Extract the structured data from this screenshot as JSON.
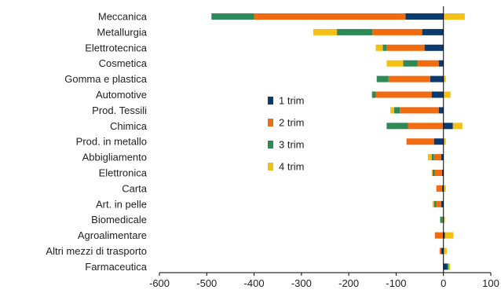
{
  "chart_data": {
    "type": "bar",
    "orientation": "horizontal",
    "stacked": true,
    "categories": [
      "Meccanica",
      "Metallurgia",
      "Elettrotecnica",
      "Cosmetica",
      "Gomma e plastica",
      "Automotive",
      "Prod. Tessili",
      "Chimica",
      "Prod. in metallo",
      "Abbigliamento",
      "Elettronica",
      "Carta",
      "Art. in pelle",
      "Biomedicale",
      "Agroalimentare",
      "Altri mezzi di trasporto",
      "Farmaceutica"
    ],
    "series": [
      {
        "name": "1 trim",
        "color": "#0b3a6e",
        "values": [
          -80,
          -45,
          -40,
          -10,
          -28,
          -25,
          -10,
          20,
          -20,
          -5,
          -3,
          -3,
          -5,
          0,
          3,
          -5,
          8
        ]
      },
      {
        "name": "2 trim",
        "color": "#f26b10",
        "values": [
          -320,
          -105,
          -80,
          -45,
          -88,
          -118,
          -82,
          -75,
          -58,
          -15,
          -15,
          -12,
          -10,
          -2,
          -18,
          -3,
          0
        ]
      },
      {
        "name": "3 trim",
        "color": "#2e8b57",
        "values": [
          -90,
          -75,
          -8,
          -30,
          -25,
          -8,
          -12,
          -45,
          0,
          -5,
          -5,
          0,
          -5,
          -5,
          0,
          0,
          3
        ]
      },
      {
        "name": "4 trim",
        "color": "#f5c016",
        "values": [
          45,
          -50,
          -15,
          -35,
          5,
          15,
          -8,
          20,
          5,
          -8,
          -2,
          5,
          -3,
          3,
          18,
          7,
          3
        ]
      }
    ],
    "xlim": [
      -600,
      100
    ],
    "xticks": [
      "-600",
      "-500",
      "-400",
      "-300",
      "-200",
      "-100",
      "0",
      "100"
    ],
    "title": "",
    "xlabel": "",
    "ylabel": "",
    "grid": false,
    "legend_position": "inside-left-center"
  }
}
